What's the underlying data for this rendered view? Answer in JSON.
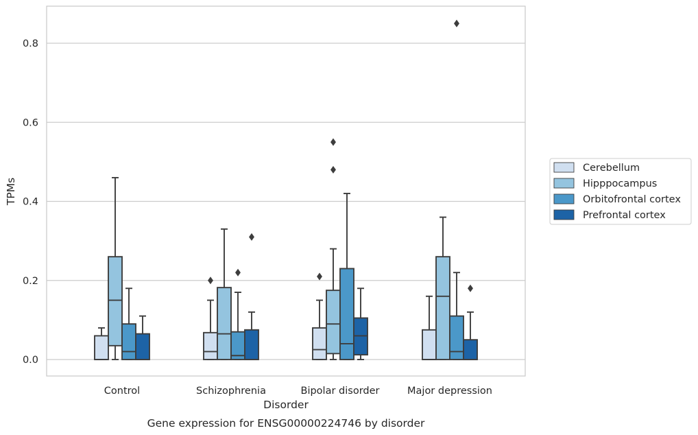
{
  "chart_data": {
    "type": "box",
    "xlabel": "Disorder",
    "ylabel": "TPMs",
    "caption": "Gene expression for ENSG00000224746 by disorder",
    "ylim": [
      -0.04,
      0.89
    ],
    "yticks": [
      "0.0",
      "0.2",
      "0.4",
      "0.6",
      "0.8"
    ],
    "ytick_values": [
      0.0,
      0.2,
      0.4,
      0.6,
      0.8
    ],
    "grid": true,
    "legend_position": "right",
    "categories": [
      "Control",
      "Schizophrenia",
      "Bipolar disorder",
      "Major depression"
    ],
    "series": [
      {
        "name": "Cerebellum",
        "color": "#d0dff0",
        "boxes": [
          {
            "whislo": 0.0,
            "q1": 0.0,
            "med": 0.0,
            "q3": 0.06,
            "whishi": 0.08,
            "fliers": []
          },
          {
            "whislo": 0.0,
            "q1": 0.0,
            "med": 0.02,
            "q3": 0.068,
            "whishi": 0.15,
            "fliers": [
              0.2
            ]
          },
          {
            "whislo": 0.0,
            "q1": 0.0,
            "med": 0.025,
            "q3": 0.08,
            "whishi": 0.15,
            "fliers": [
              0.21
            ]
          },
          {
            "whislo": 0.0,
            "q1": 0.0,
            "med": 0.0,
            "q3": 0.075,
            "whishi": 0.16,
            "fliers": []
          }
        ]
      },
      {
        "name": "Hipppocampus",
        "color": "#94c4df",
        "boxes": [
          {
            "whislo": 0.0,
            "q1": 0.035,
            "med": 0.15,
            "q3": 0.26,
            "whishi": 0.46,
            "fliers": []
          },
          {
            "whislo": 0.0,
            "q1": 0.0,
            "med": 0.065,
            "q3": 0.182,
            "whishi": 0.33,
            "fliers": []
          },
          {
            "whislo": 0.0,
            "q1": 0.015,
            "med": 0.09,
            "q3": 0.175,
            "whishi": 0.28,
            "fliers": [
              0.48,
              0.55
            ]
          },
          {
            "whislo": 0.0,
            "q1": 0.0,
            "med": 0.16,
            "q3": 0.26,
            "whishi": 0.36,
            "fliers": []
          }
        ]
      },
      {
        "name": "Orbitofrontal cortex",
        "color": "#4b98c9",
        "boxes": [
          {
            "whislo": 0.0,
            "q1": 0.0,
            "med": 0.02,
            "q3": 0.09,
            "whishi": 0.18,
            "fliers": []
          },
          {
            "whislo": 0.0,
            "q1": 0.0,
            "med": 0.01,
            "q3": 0.07,
            "whishi": 0.17,
            "fliers": [
              0.22
            ]
          },
          {
            "whislo": 0.0,
            "q1": 0.0,
            "med": 0.04,
            "q3": 0.23,
            "whishi": 0.42,
            "fliers": []
          },
          {
            "whislo": 0.0,
            "q1": 0.0,
            "med": 0.02,
            "q3": 0.11,
            "whishi": 0.22,
            "fliers": [
              0.85
            ]
          }
        ]
      },
      {
        "name": "Prefrontal cortex",
        "color": "#1d63a6",
        "boxes": [
          {
            "whislo": 0.0,
            "q1": 0.0,
            "med": 0.0,
            "q3": 0.065,
            "whishi": 0.11,
            "fliers": []
          },
          {
            "whislo": 0.0,
            "q1": 0.0,
            "med": 0.0,
            "q3": 0.075,
            "whishi": 0.12,
            "fliers": [
              0.31
            ]
          },
          {
            "whislo": 0.0,
            "q1": 0.012,
            "med": 0.06,
            "q3": 0.105,
            "whishi": 0.18,
            "fliers": []
          },
          {
            "whislo": 0.0,
            "q1": 0.0,
            "med": 0.0,
            "q3": 0.05,
            "whishi": 0.12,
            "fliers": [
              0.18
            ]
          }
        ]
      }
    ]
  }
}
